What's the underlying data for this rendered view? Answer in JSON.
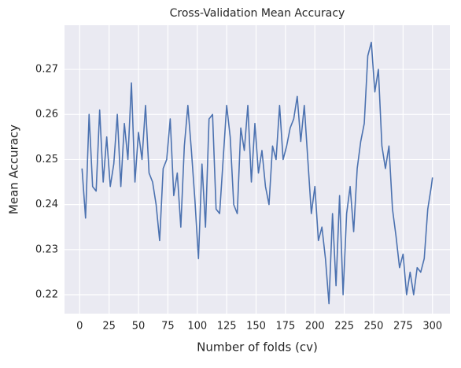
{
  "chart_data": {
    "type": "line",
    "title": "Cross-Validation Mean Accuracy",
    "xlabel": "Number of folds (cv)",
    "ylabel": "Mean Accuracy",
    "x": [
      2,
      5,
      8,
      11,
      14,
      17,
      20,
      23,
      26,
      29,
      32,
      35,
      38,
      41,
      44,
      47,
      50,
      53,
      56,
      59,
      62,
      65,
      68,
      71,
      74,
      77,
      80,
      83,
      86,
      89,
      92,
      95,
      98,
      101,
      104,
      107,
      110,
      113,
      116,
      119,
      122,
      125,
      128,
      131,
      134,
      137,
      140,
      143,
      146,
      149,
      152,
      155,
      158,
      161,
      164,
      167,
      170,
      173,
      176,
      179,
      182,
      185,
      188,
      191,
      194,
      197,
      200,
      203,
      206,
      209,
      212,
      215,
      218,
      221,
      224,
      227,
      230,
      233,
      236,
      239,
      242,
      245,
      248,
      251,
      254,
      257,
      260,
      263,
      266,
      269,
      272,
      275,
      278,
      281,
      284,
      287,
      290,
      293,
      296,
      299,
      300
    ],
    "series": [
      {
        "name": "Mean Accuracy",
        "color": "#4c72b0",
        "values": [
          0.248,
          0.237,
          0.26,
          0.244,
          0.243,
          0.261,
          0.245,
          0.255,
          0.244,
          0.249,
          0.26,
          0.244,
          0.258,
          0.25,
          0.267,
          0.245,
          0.256,
          0.25,
          0.262,
          0.247,
          0.245,
          0.24,
          0.232,
          0.248,
          0.25,
          0.259,
          0.242,
          0.247,
          0.235,
          0.253,
          0.262,
          0.252,
          0.241,
          0.228,
          0.249,
          0.235,
          0.259,
          0.26,
          0.239,
          0.238,
          0.25,
          0.262,
          0.255,
          0.24,
          0.238,
          0.257,
          0.252,
          0.262,
          0.245,
          0.258,
          0.247,
          0.252,
          0.244,
          0.24,
          0.253,
          0.25,
          0.262,
          0.25,
          0.253,
          0.257,
          0.259,
          0.264,
          0.254,
          0.262,
          0.25,
          0.238,
          0.244,
          0.232,
          0.235,
          0.228,
          0.218,
          0.238,
          0.222,
          0.242,
          0.22,
          0.238,
          0.244,
          0.234,
          0.248,
          0.254,
          0.258,
          0.273,
          0.276,
          0.265,
          0.27,
          0.253,
          0.248,
          0.253,
          0.239,
          0.233,
          0.226,
          0.229,
          0.22,
          0.225,
          0.22,
          0.226,
          0.225,
          0.228,
          0.239,
          0.244,
          0.246
        ]
      }
    ],
    "xlim": [
      -12.9,
      314.9
    ],
    "xticks": [
      0,
      25,
      50,
      75,
      100,
      125,
      150,
      175,
      200,
      225,
      250,
      275,
      300
    ],
    "ylim": [
      0.2158,
      0.2798
    ],
    "yticks": [
      0.22,
      0.23,
      0.24,
      0.25,
      0.26,
      0.27
    ],
    "grid": true,
    "background": "#eaeaf2"
  }
}
